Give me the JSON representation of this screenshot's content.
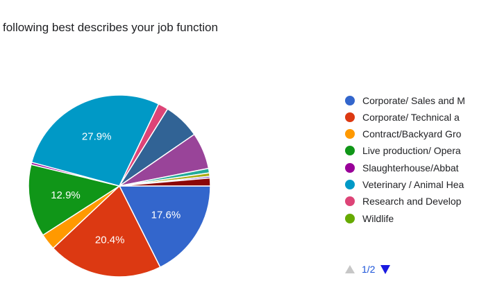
{
  "title": "following best describes your job function",
  "chart_data": {
    "type": "pie",
    "slices": [
      {
        "label": "Corporate/ Sales and M",
        "value": 17.6,
        "color": "#3366cc",
        "show_label": true
      },
      {
        "label": "Corporate/ Technical a",
        "value": 20.4,
        "color": "#dc3912",
        "show_label": true
      },
      {
        "label": "Contract/Backyard Gro",
        "value": 2.9,
        "color": "#ff9900",
        "show_label": false
      },
      {
        "label": "Live production/ Opera",
        "value": 12.9,
        "color": "#109618",
        "show_label": true
      },
      {
        "label": "Slaughterhouse/Abbat",
        "value": 0.4,
        "color": "#990099",
        "show_label": false
      },
      {
        "label": "Veterinary / Animal Hea",
        "value": 27.9,
        "color": "#0099c6",
        "show_label": true
      },
      {
        "label": "Research and Develop",
        "value": 1.8,
        "color": "#dd4477",
        "show_label": false
      },
      {
        "label": "Wildlife",
        "value": 0.0,
        "color": "#66aa00",
        "show_label": false
      },
      {
        "label": "",
        "value": 6.5,
        "color": "#316395",
        "show_label": false
      },
      {
        "label": "",
        "value": 6.5,
        "color": "#994499",
        "show_label": false
      },
      {
        "label": "",
        "value": 0.8,
        "color": "#22aa99",
        "show_label": false
      },
      {
        "label": "",
        "value": 0.6,
        "color": "#aaaa11",
        "show_label": false
      },
      {
        "label": "",
        "value": 0.3,
        "color": "#6633cc",
        "show_label": false
      },
      {
        "label": "",
        "value": 1.4,
        "color": "#8b0707",
        "show_label": false
      }
    ],
    "legend_position": "right",
    "legend_visible_count": 8
  },
  "pager": {
    "text": "1/2"
  }
}
